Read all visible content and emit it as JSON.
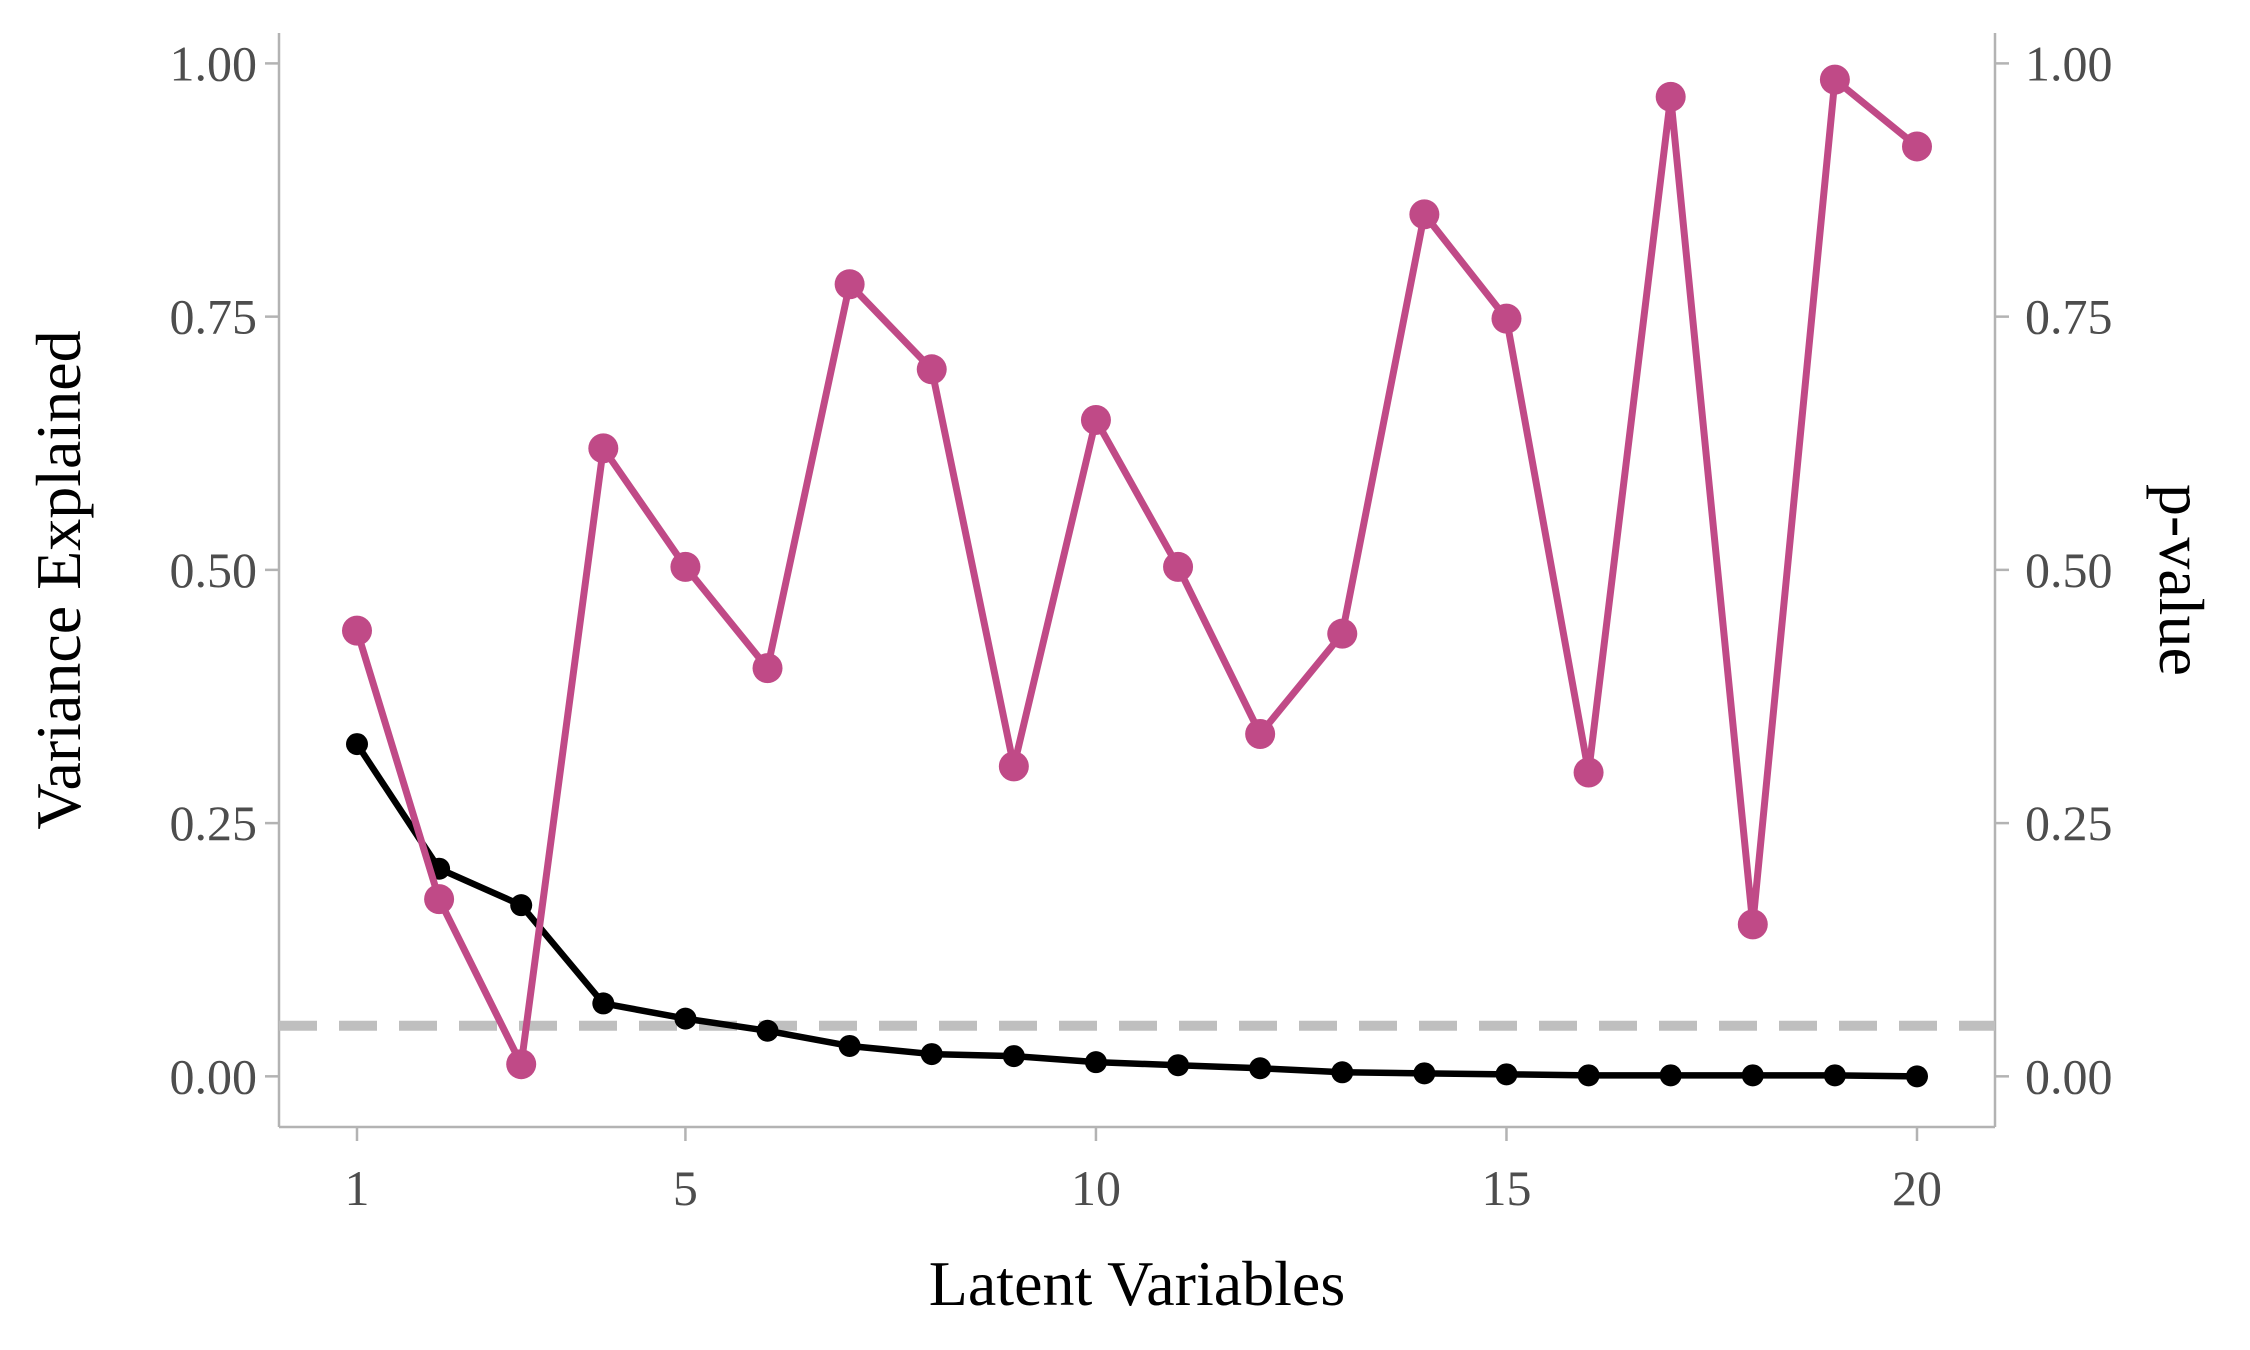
{
  "chart_data": {
    "type": "line",
    "xlabel": "Latent Variables",
    "ylabel": "Variance Explained",
    "y2label": "p-value",
    "x": [
      1,
      2,
      3,
      4,
      5,
      6,
      7,
      8,
      9,
      10,
      11,
      12,
      13,
      14,
      15,
      16,
      17,
      18,
      19,
      20
    ],
    "x_ticks": [
      "1",
      "5",
      "10",
      "15",
      "20"
    ],
    "x_tick_values": [
      1,
      5,
      10,
      15,
      20
    ],
    "y_ticks": [
      "0.00",
      "0.25",
      "0.50",
      "0.75",
      "1.00"
    ],
    "y_tick_values": [
      0,
      0.25,
      0.5,
      0.75,
      1.0
    ],
    "xlim": [
      0.05,
      20.95
    ],
    "ylim": [
      -0.05,
      1.03
    ],
    "y2lim": [
      -0.05,
      1.03
    ],
    "grid": false,
    "reference_line": {
      "y": 0.05,
      "style": "dashed",
      "color": "#bfbfbf"
    },
    "series": [
      {
        "axis": "left",
        "color": "#000000",
        "values": [
          0.328,
          0.205,
          0.169,
          0.072,
          0.057,
          0.045,
          0.03,
          0.022,
          0.02,
          0.014,
          0.011,
          0.008,
          0.004,
          0.003,
          0.002,
          0.001,
          0.001,
          0.001,
          0.001,
          0.0
        ]
      },
      {
        "axis": "right",
        "color": "#c04a87",
        "values": [
          0.44,
          0.175,
          0.012,
          0.62,
          0.503,
          0.403,
          0.782,
          0.698,
          0.306,
          0.648,
          0.503,
          0.338,
          0.437,
          0.851,
          0.748,
          0.3,
          0.967,
          0.15,
          0.984,
          0.918
        ]
      }
    ]
  }
}
